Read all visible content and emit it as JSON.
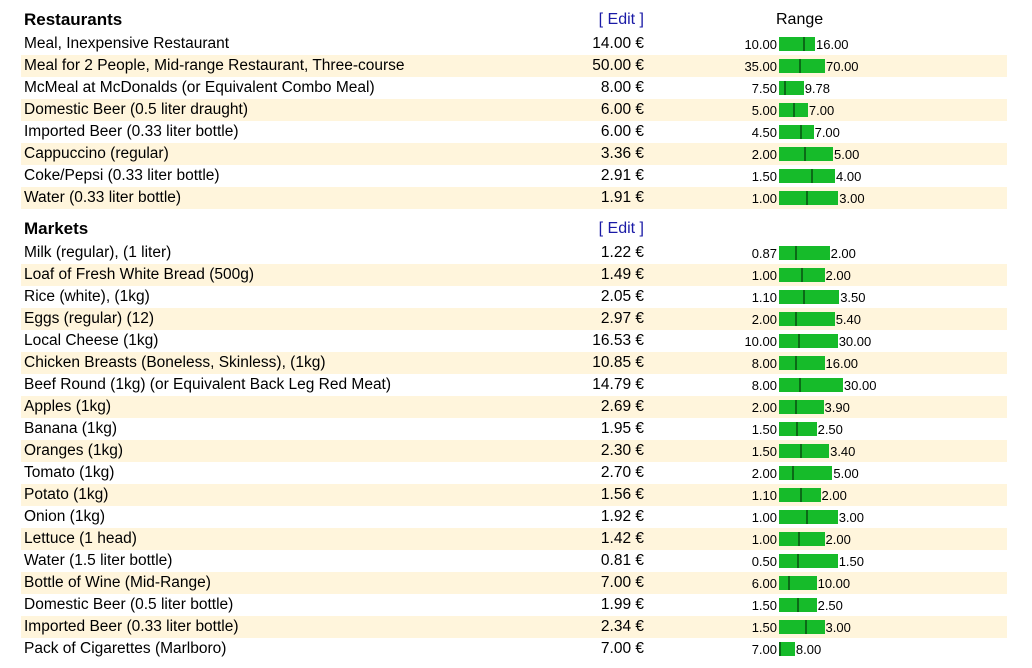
{
  "columns": {
    "range_label": "Range"
  },
  "sections": [
    {
      "title": "Restaurants",
      "edit_label": "[ Edit ]",
      "items": [
        {
          "name": "Meal, Inexpensive Restaurant",
          "price": "14.00 €",
          "price_value": 14.0,
          "low": "10.00",
          "high": "16.00"
        },
        {
          "name": "Meal for 2 People, Mid-range Restaurant, Three-course",
          "price": "50.00 €",
          "price_value": 50.0,
          "low": "35.00",
          "high": "70.00"
        },
        {
          "name": "McMeal at McDonalds (or Equivalent Combo Meal)",
          "price": "8.00 €",
          "price_value": 8.0,
          "low": "7.50",
          "high": "9.78"
        },
        {
          "name": "Domestic Beer (0.5 liter draught)",
          "price": "6.00 €",
          "price_value": 6.0,
          "low": "5.00",
          "high": "7.00"
        },
        {
          "name": "Imported Beer (0.33 liter bottle)",
          "price": "6.00 €",
          "price_value": 6.0,
          "low": "4.50",
          "high": "7.00"
        },
        {
          "name": "Cappuccino (regular)",
          "price": "3.36 €",
          "price_value": 3.36,
          "low": "2.00",
          "high": "5.00"
        },
        {
          "name": "Coke/Pepsi (0.33 liter bottle)",
          "price": "2.91 €",
          "price_value": 2.91,
          "low": "1.50",
          "high": "4.00"
        },
        {
          "name": "Water (0.33 liter bottle)",
          "price": "1.91 €",
          "price_value": 1.91,
          "low": "1.00",
          "high": "3.00"
        }
      ]
    },
    {
      "title": "Markets",
      "edit_label": "[ Edit ]",
      "items": [
        {
          "name": "Milk (regular), (1 liter)",
          "price": "1.22 €",
          "price_value": 1.22,
          "low": "0.87",
          "high": "2.00"
        },
        {
          "name": "Loaf of Fresh White Bread (500g)",
          "price": "1.49 €",
          "price_value": 1.49,
          "low": "1.00",
          "high": "2.00"
        },
        {
          "name": "Rice (white), (1kg)",
          "price": "2.05 €",
          "price_value": 2.05,
          "low": "1.10",
          "high": "3.50"
        },
        {
          "name": "Eggs (regular) (12)",
          "price": "2.97 €",
          "price_value": 2.97,
          "low": "2.00",
          "high": "5.40"
        },
        {
          "name": "Local Cheese (1kg)",
          "price": "16.53 €",
          "price_value": 16.53,
          "low": "10.00",
          "high": "30.00"
        },
        {
          "name": "Chicken Breasts (Boneless, Skinless), (1kg)",
          "price": "10.85 €",
          "price_value": 10.85,
          "low": "8.00",
          "high": "16.00"
        },
        {
          "name": "Beef Round (1kg) (or Equivalent Back Leg Red Meat)",
          "price": "14.79 €",
          "price_value": 14.79,
          "low": "8.00",
          "high": "30.00"
        },
        {
          "name": "Apples (1kg)",
          "price": "2.69 €",
          "price_value": 2.69,
          "low": "2.00",
          "high": "3.90"
        },
        {
          "name": "Banana (1kg)",
          "price": "1.95 €",
          "price_value": 1.95,
          "low": "1.50",
          "high": "2.50"
        },
        {
          "name": "Oranges (1kg)",
          "price": "2.30 €",
          "price_value": 2.3,
          "low": "1.50",
          "high": "3.40"
        },
        {
          "name": "Tomato (1kg)",
          "price": "2.70 €",
          "price_value": 2.7,
          "low": "2.00",
          "high": "5.00"
        },
        {
          "name": "Potato (1kg)",
          "price": "1.56 €",
          "price_value": 1.56,
          "low": "1.10",
          "high": "2.00"
        },
        {
          "name": "Onion (1kg)",
          "price": "1.92 €",
          "price_value": 1.92,
          "low": "1.00",
          "high": "3.00"
        },
        {
          "name": "Lettuce (1 head)",
          "price": "1.42 €",
          "price_value": 1.42,
          "low": "1.00",
          "high": "2.00"
        },
        {
          "name": "Water (1.5 liter bottle)",
          "price": "0.81 €",
          "price_value": 0.81,
          "low": "0.50",
          "high": "1.50"
        },
        {
          "name": "Bottle of Wine (Mid-Range)",
          "price": "7.00 €",
          "price_value": 7.0,
          "low": "6.00",
          "high": "10.00"
        },
        {
          "name": "Domestic Beer (0.5 liter bottle)",
          "price": "1.99 €",
          "price_value": 1.99,
          "low": "1.50",
          "high": "2.50"
        },
        {
          "name": "Imported Beer (0.33 liter bottle)",
          "price": "2.34 €",
          "price_value": 2.34,
          "low": "1.50",
          "high": "3.00"
        },
        {
          "name": "Pack of Cigarettes (Marlboro)",
          "price": "7.00 €",
          "price_value": 7.0,
          "low": "7.00",
          "high": "8.00"
        }
      ]
    }
  ],
  "colors": {
    "bar": "#16bb2a",
    "marker": "#0b6b17",
    "row_alt": "#fff5dc",
    "edit_link": "#1a1aa6"
  }
}
